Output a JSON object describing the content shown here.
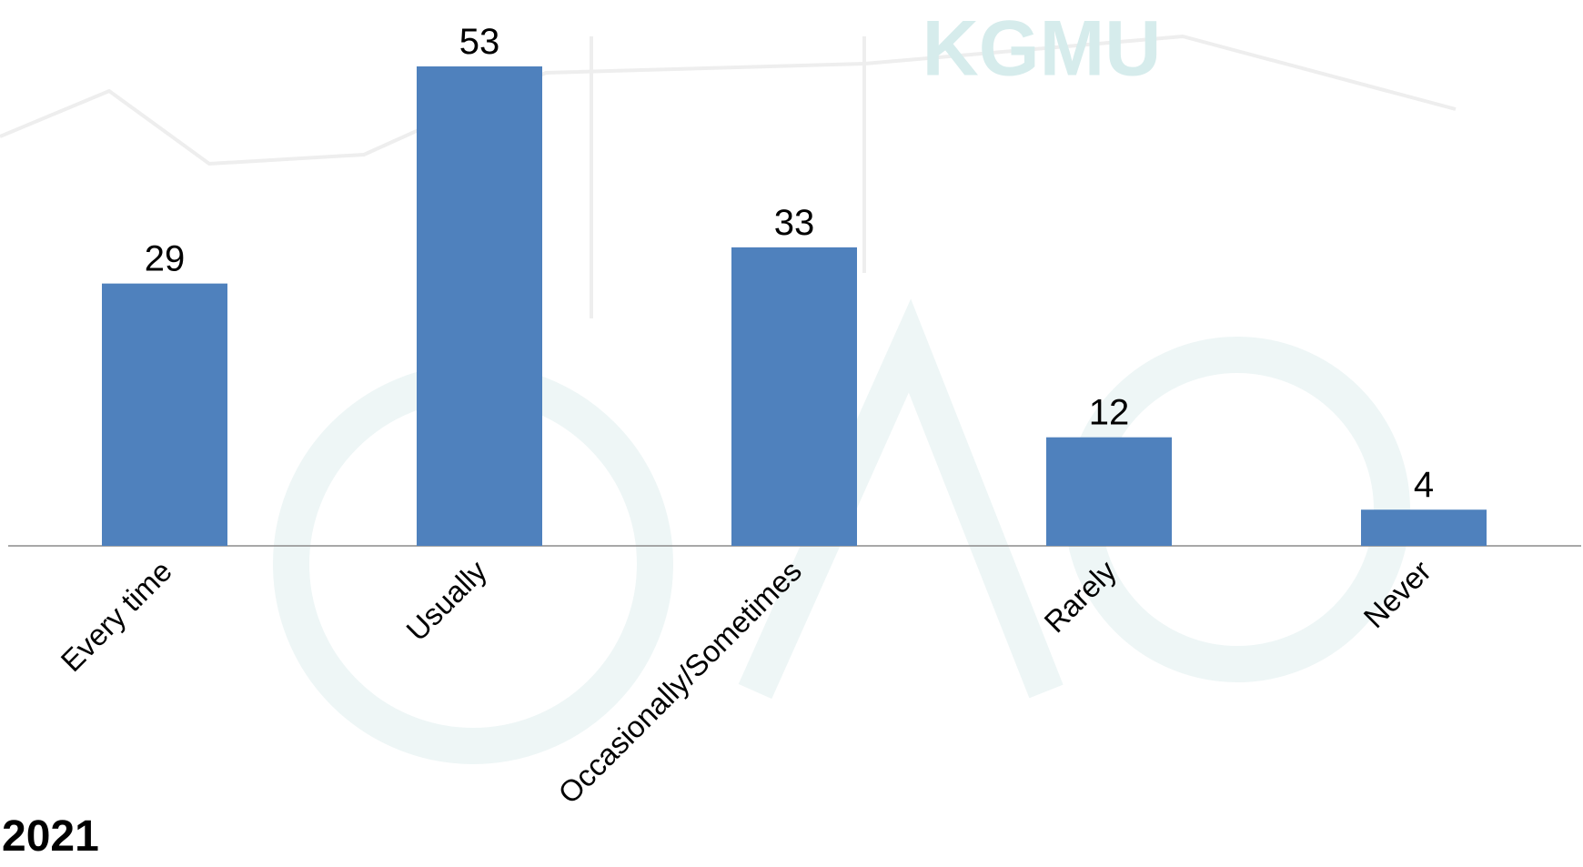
{
  "chart_data": {
    "type": "bar",
    "categories": [
      "Every time",
      "Usually",
      "Occasionally/Sometimes",
      "Rarely",
      "Never"
    ],
    "values": [
      29,
      53,
      33,
      12,
      4
    ],
    "color": "#4f81bd",
    "annotation": "2021",
    "watermark": "KGMU"
  }
}
